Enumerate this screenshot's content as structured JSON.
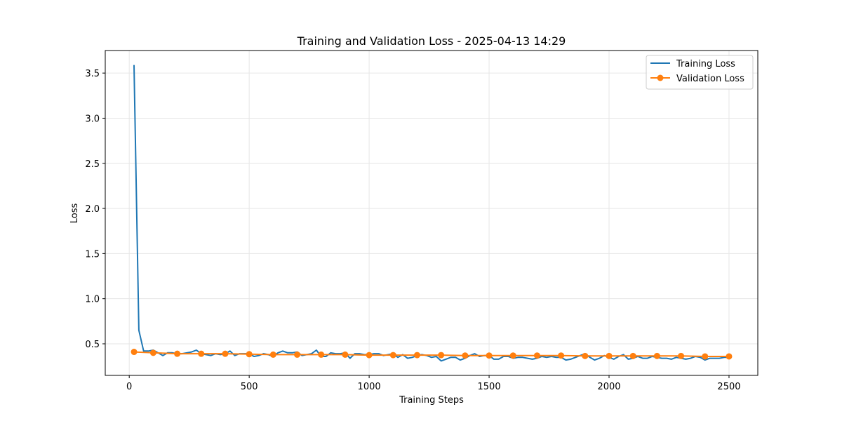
{
  "chart_data": {
    "type": "line",
    "title": "Training and Validation Loss - 2025-04-13 14:29",
    "xlabel": "Training Steps",
    "ylabel": "Loss",
    "xlim": [
      -100,
      2620
    ],
    "ylim": [
      0.15,
      3.75
    ],
    "xticks": [
      0,
      500,
      1000,
      1500,
      2000,
      2500
    ],
    "yticks": [
      0.5,
      1.0,
      1.5,
      2.0,
      2.5,
      3.0,
      3.5
    ],
    "xtick_labels": [
      "0",
      "500",
      "1000",
      "1500",
      "2000",
      "2500"
    ],
    "ytick_labels": [
      "0.5",
      "1.0",
      "1.5",
      "2.0",
      "2.5",
      "3.0",
      "3.5"
    ],
    "grid": true,
    "legend_position": "top-right",
    "series": [
      {
        "name": "Training Loss",
        "color": "#1f77b4",
        "marker": "none",
        "x": [
          20,
          40,
          60,
          80,
          100,
          120,
          140,
          160,
          180,
          200,
          220,
          240,
          260,
          280,
          300,
          320,
          340,
          360,
          380,
          400,
          420,
          440,
          460,
          480,
          500,
          520,
          540,
          560,
          580,
          600,
          620,
          640,
          660,
          680,
          700,
          720,
          740,
          760,
          780,
          800,
          820,
          840,
          860,
          880,
          900,
          920,
          940,
          960,
          980,
          1000,
          1020,
          1040,
          1060,
          1080,
          1100,
          1120,
          1140,
          1160,
          1180,
          1200,
          1220,
          1240,
          1260,
          1280,
          1300,
          1320,
          1340,
          1360,
          1380,
          1400,
          1420,
          1440,
          1460,
          1480,
          1500,
          1520,
          1540,
          1560,
          1580,
          1600,
          1620,
          1640,
          1660,
          1680,
          1700,
          1720,
          1740,
          1760,
          1780,
          1800,
          1820,
          1840,
          1860,
          1880,
          1900,
          1920,
          1940,
          1960,
          1980,
          2000,
          2020,
          2040,
          2060,
          2080,
          2100,
          2120,
          2140,
          2160,
          2180,
          2200,
          2220,
          2240,
          2260,
          2280,
          2300,
          2320,
          2340,
          2360,
          2380,
          2400,
          2420,
          2440,
          2460,
          2480,
          2500
        ],
        "values": [
          3.59,
          0.65,
          0.42,
          0.42,
          0.43,
          0.4,
          0.37,
          0.4,
          0.4,
          0.39,
          0.39,
          0.4,
          0.41,
          0.43,
          0.39,
          0.38,
          0.37,
          0.39,
          0.38,
          0.39,
          0.42,
          0.37,
          0.39,
          0.39,
          0.39,
          0.36,
          0.37,
          0.39,
          0.38,
          0.36,
          0.4,
          0.42,
          0.4,
          0.4,
          0.41,
          0.37,
          0.38,
          0.39,
          0.43,
          0.36,
          0.36,
          0.4,
          0.39,
          0.39,
          0.4,
          0.34,
          0.39,
          0.39,
          0.38,
          0.38,
          0.39,
          0.39,
          0.37,
          0.38,
          0.39,
          0.35,
          0.38,
          0.34,
          0.35,
          0.37,
          0.38,
          0.37,
          0.35,
          0.36,
          0.31,
          0.33,
          0.35,
          0.35,
          0.32,
          0.34,
          0.37,
          0.39,
          0.36,
          0.37,
          0.37,
          0.33,
          0.33,
          0.36,
          0.36,
          0.34,
          0.35,
          0.35,
          0.34,
          0.33,
          0.34,
          0.36,
          0.35,
          0.36,
          0.35,
          0.35,
          0.32,
          0.33,
          0.35,
          0.37,
          0.39,
          0.35,
          0.32,
          0.34,
          0.37,
          0.35,
          0.33,
          0.36,
          0.38,
          0.33,
          0.34,
          0.36,
          0.34,
          0.34,
          0.36,
          0.35,
          0.34,
          0.34,
          0.33,
          0.35,
          0.34,
          0.33,
          0.34,
          0.36,
          0.35,
          0.32,
          0.34,
          0.34,
          0.34,
          0.35,
          0.35
        ]
      },
      {
        "name": "Validation Loss",
        "color": "#ff7f0e",
        "marker": "circle",
        "x": [
          20,
          100,
          200,
          300,
          400,
          500,
          600,
          700,
          800,
          900,
          1000,
          1100,
          1200,
          1300,
          1400,
          1500,
          1600,
          1700,
          1800,
          1900,
          2000,
          2100,
          2200,
          2300,
          2400,
          2500
        ],
        "values": [
          0.41,
          0.4,
          0.39,
          0.39,
          0.39,
          0.385,
          0.38,
          0.38,
          0.38,
          0.38,
          0.375,
          0.375,
          0.375,
          0.375,
          0.37,
          0.37,
          0.37,
          0.37,
          0.37,
          0.365,
          0.365,
          0.365,
          0.365,
          0.365,
          0.36,
          0.36
        ]
      }
    ]
  }
}
